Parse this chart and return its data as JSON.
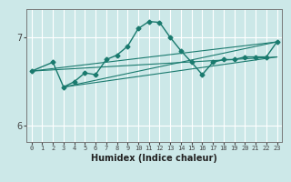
{
  "xlabel": "Humidex (Indice chaleur)",
  "ylabel": "",
  "bg_color": "#cce8e8",
  "grid_color": "#ffffff",
  "line_color": "#1a7a6e",
  "xlim": [
    -0.5,
    23.5
  ],
  "ylim": [
    5.82,
    7.32
  ],
  "yticks": [
    6,
    7
  ],
  "xticks": [
    0,
    1,
    2,
    3,
    4,
    5,
    6,
    7,
    8,
    9,
    10,
    11,
    12,
    13,
    14,
    15,
    16,
    17,
    18,
    19,
    20,
    21,
    22,
    23
  ],
  "series": [
    [
      0,
      6.62
    ],
    [
      2,
      6.72
    ],
    [
      3,
      6.44
    ],
    [
      4,
      6.5
    ],
    [
      5,
      6.6
    ],
    [
      6,
      6.58
    ],
    [
      7,
      6.75
    ],
    [
      8,
      6.8
    ],
    [
      9,
      6.9
    ],
    [
      10,
      7.1
    ],
    [
      11,
      7.18
    ],
    [
      12,
      7.17
    ],
    [
      13,
      7.0
    ],
    [
      14,
      6.85
    ],
    [
      15,
      6.72
    ],
    [
      16,
      6.58
    ],
    [
      17,
      6.72
    ],
    [
      18,
      6.75
    ],
    [
      19,
      6.75
    ],
    [
      20,
      6.78
    ],
    [
      21,
      6.78
    ],
    [
      22,
      6.78
    ],
    [
      23,
      6.95
    ]
  ],
  "line1": [
    [
      0,
      6.62
    ],
    [
      23,
      6.95
    ]
  ],
  "line2": [
    [
      0,
      6.62
    ],
    [
      23,
      6.78
    ]
  ],
  "line3": [
    [
      3,
      6.44
    ],
    [
      23,
      6.78
    ]
  ],
  "line4": [
    [
      3,
      6.44
    ],
    [
      23,
      6.95
    ]
  ]
}
